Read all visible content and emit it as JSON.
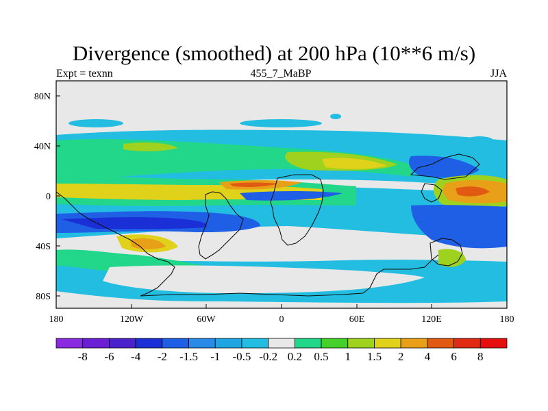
{
  "title": "Divergence (smoothed) at 200 hPa (10**6 m/s)",
  "subtitle_left": "Expt = texnn",
  "subtitle_center": "455_7_MaBP",
  "subtitle_right": "JJA",
  "lat_labels": [
    "80N",
    "40N",
    "0",
    "40S",
    "80S"
  ],
  "lon_labels": [
    "180",
    "120W",
    "60W",
    "0",
    "60E",
    "120E",
    "180"
  ],
  "colorbar": {
    "labels": [
      "-8",
      "-6",
      "-4",
      "-2",
      "-1.5",
      "-1",
      "-0.5",
      "-0.2",
      "0.2",
      "0.5",
      "1",
      "1.5",
      "2",
      "4",
      "6",
      "8"
    ],
    "colors": [
      "#8a2be2",
      "#6a1fd6",
      "#4a22cc",
      "#1a2fd6",
      "#1f5fe6",
      "#2a8ae8",
      "#1fa6e2",
      "#22bde0",
      "#e8e8e8",
      "#22d68a",
      "#45d12a",
      "#9fd21e",
      "#e0d21a",
      "#e8a019",
      "#e05a12",
      "#e02a14",
      "#e60f0f"
    ]
  },
  "field_colors": {
    "neutral": "#e8e8e8",
    "cyan": "#22bde0",
    "blue": "#1f5fe6",
    "darkblue": "#1a2fd6",
    "green": "#22d68a",
    "lightgreen": "#9fd21e",
    "yellow": "#e0d21a",
    "orange": "#e8a019",
    "red": "#e05a12"
  }
}
